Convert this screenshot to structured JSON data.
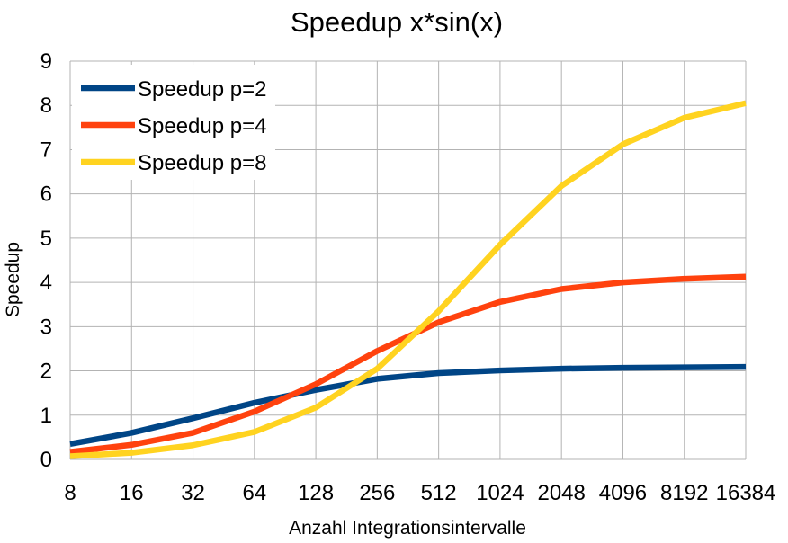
{
  "chart_data": {
    "type": "line",
    "title": "Speedup x*sin(x)",
    "xlabel": "Anzahl Integrationsintervalle",
    "ylabel": "Speedup",
    "categories": [
      "8",
      "16",
      "32",
      "64",
      "128",
      "256",
      "512",
      "1024",
      "2048",
      "4096",
      "8192",
      "16384"
    ],
    "ylim": [
      0,
      9
    ],
    "yticks": [
      "0",
      "1",
      "2",
      "3",
      "4",
      "5",
      "6",
      "7",
      "8",
      "9"
    ],
    "grid": true,
    "legend_position": "top-left",
    "series": [
      {
        "name": "Speedup p=2",
        "color": "#004586",
        "values": [
          0.35,
          0.6,
          0.93,
          1.28,
          1.57,
          1.82,
          1.95,
          2.01,
          2.05,
          2.07,
          2.08,
          2.09
        ]
      },
      {
        "name": "Speedup p=4",
        "color": "#ff420e",
        "values": [
          0.17,
          0.33,
          0.6,
          1.08,
          1.7,
          2.45,
          3.1,
          3.56,
          3.85,
          4.0,
          4.08,
          4.13
        ]
      },
      {
        "name": "Speedup p=8",
        "color": "#ffd320",
        "values": [
          0.07,
          0.15,
          0.32,
          0.62,
          1.17,
          2.05,
          3.35,
          4.85,
          6.18,
          7.12,
          7.72,
          8.05
        ]
      }
    ]
  }
}
